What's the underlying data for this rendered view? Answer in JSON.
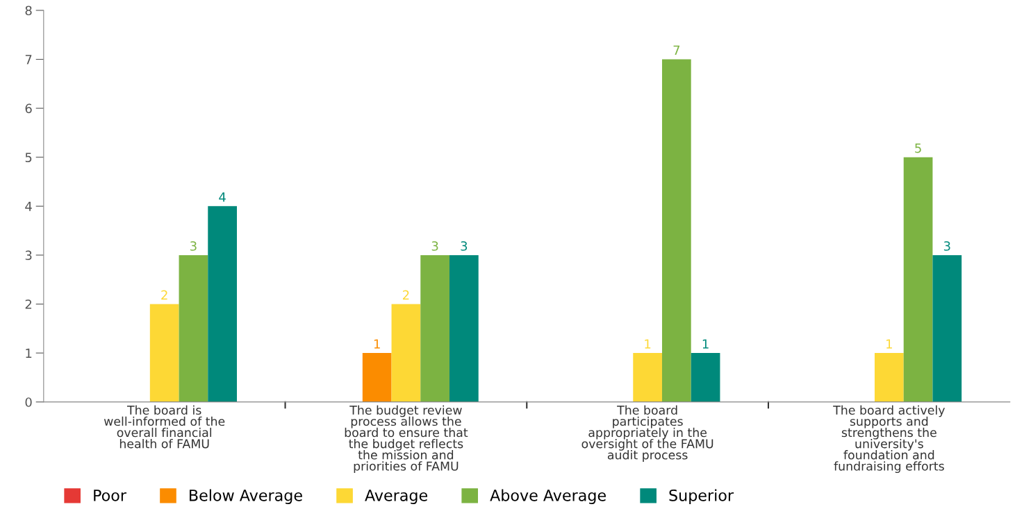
{
  "chart_data": {
    "type": "bar",
    "categories": [
      "The board is\nwell-informed of the\noverall financial\nhealth of FAMU",
      "The budget review\nprocess allows the\nboard to ensure that\nthe budget reflects\nthe mission and\npriorities of FAMU",
      "The board\nparticipates\nappropriately in the\noversight of the FAMU\naudit process",
      "The board actively\nsupports and\nstrengthens the\nuniversity's\nfoundation and\nfundraising efforts"
    ],
    "series": [
      {
        "name": "Poor",
        "color": "#e53935",
        "values": [
          0,
          0,
          0,
          0
        ],
        "value_labels": [
          null,
          null,
          null,
          null
        ]
      },
      {
        "name": "Below Average",
        "color": "#fb8c00",
        "values": [
          0,
          1,
          0,
          0
        ],
        "value_labels": [
          null,
          "1",
          null,
          null
        ]
      },
      {
        "name": "Average",
        "color": "#fdd835",
        "values": [
          2,
          2,
          1,
          1
        ],
        "value_labels": [
          "2",
          "2",
          "1",
          "1"
        ]
      },
      {
        "name": "Above Average",
        "color": "#7cb342",
        "values": [
          3,
          3,
          7,
          5
        ],
        "value_labels": [
          "3",
          "3",
          "7",
          "5"
        ]
      },
      {
        "name": "Superior",
        "color": "#00897b",
        "values": [
          4,
          3,
          1,
          3
        ],
        "value_labels": [
          "4",
          "3",
          "1",
          "3"
        ]
      }
    ],
    "ylim": [
      0,
      8
    ],
    "yticks": [
      0,
      1,
      2,
      3,
      4,
      5,
      6,
      7,
      8
    ],
    "grid": false,
    "legend": "bottom left"
  }
}
